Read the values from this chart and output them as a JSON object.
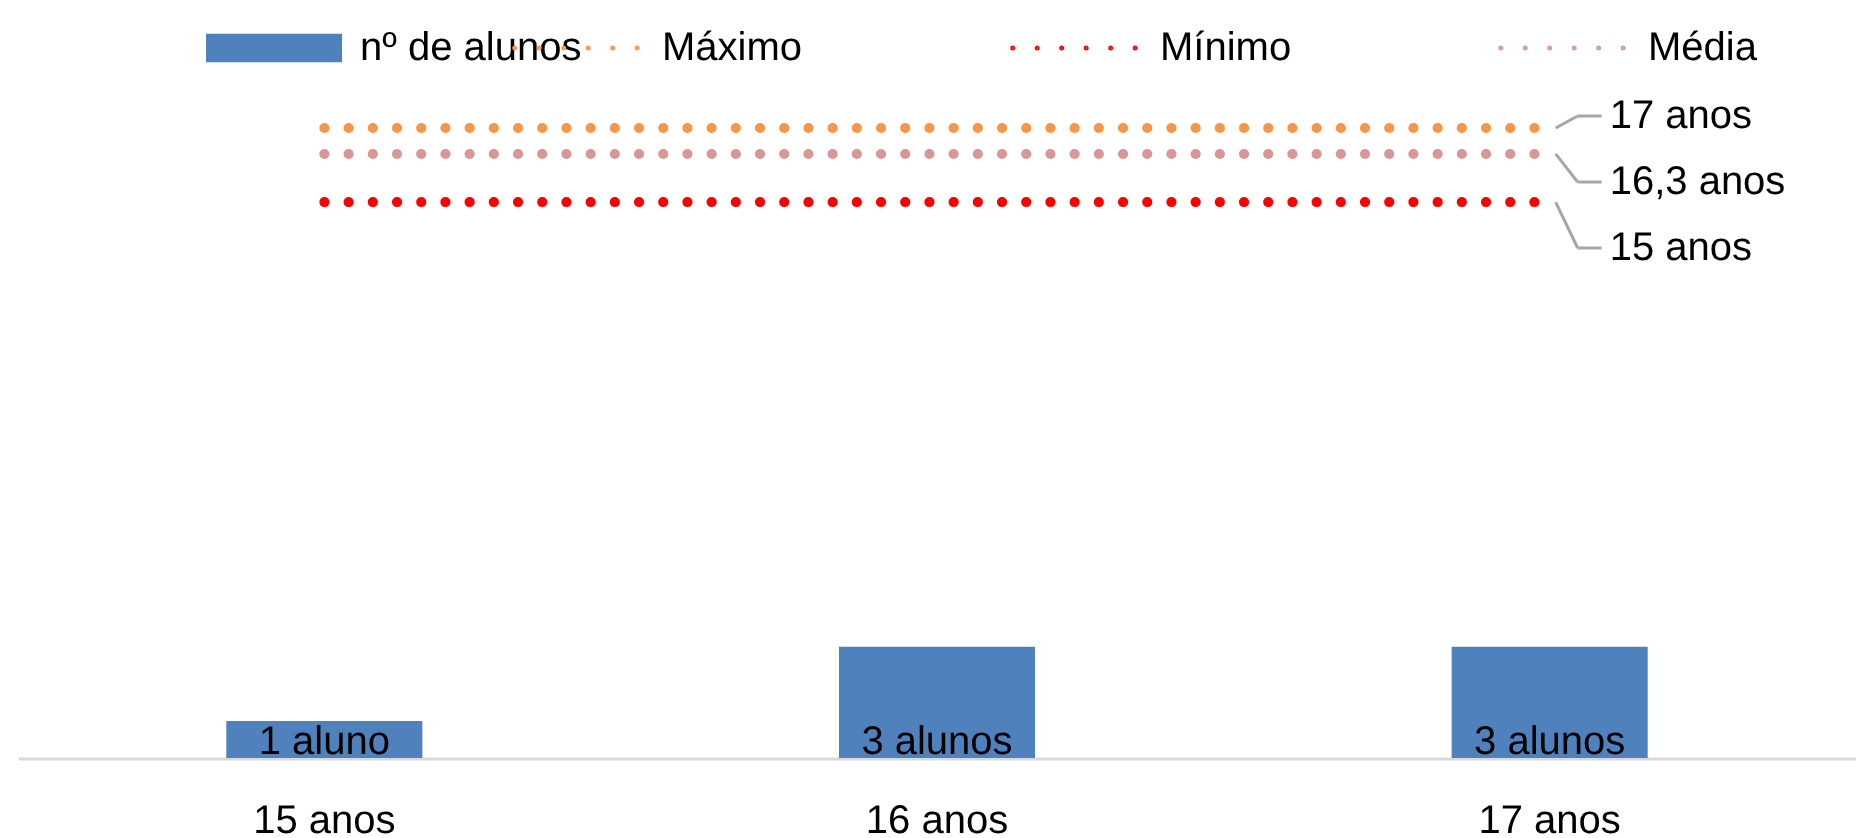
{
  "chart_data": {
    "type": "bar",
    "categories": [
      "15 anos",
      "16 anos",
      "17 anos"
    ],
    "series": [
      {
        "name": "nº de alunos",
        "color": "#4f81bd",
        "values": [
          1,
          3,
          3
        ],
        "value_labels": [
          "1 aluno",
          "3 alunos",
          "3 alunos"
        ]
      },
      {
        "name": "Máximo",
        "type": "line",
        "color": "#f79646",
        "values": [
          17,
          17,
          17
        ],
        "value_labels": [
          null,
          null,
          "17 anos"
        ]
      },
      {
        "name": "Mínimo",
        "type": "line",
        "color": "#ff0000",
        "values": [
          15,
          15,
          15
        ],
        "value_labels": [
          null,
          null,
          "15 anos"
        ]
      },
      {
        "name": "Média",
        "type": "line",
        "color": "#d99694",
        "values": [
          16.3,
          16.3,
          16.3
        ],
        "value_labels": [
          null,
          null,
          "16,3 anos"
        ]
      }
    ],
    "legend": "top",
    "line_style": "dotted",
    "tick_labels": "x"
  }
}
